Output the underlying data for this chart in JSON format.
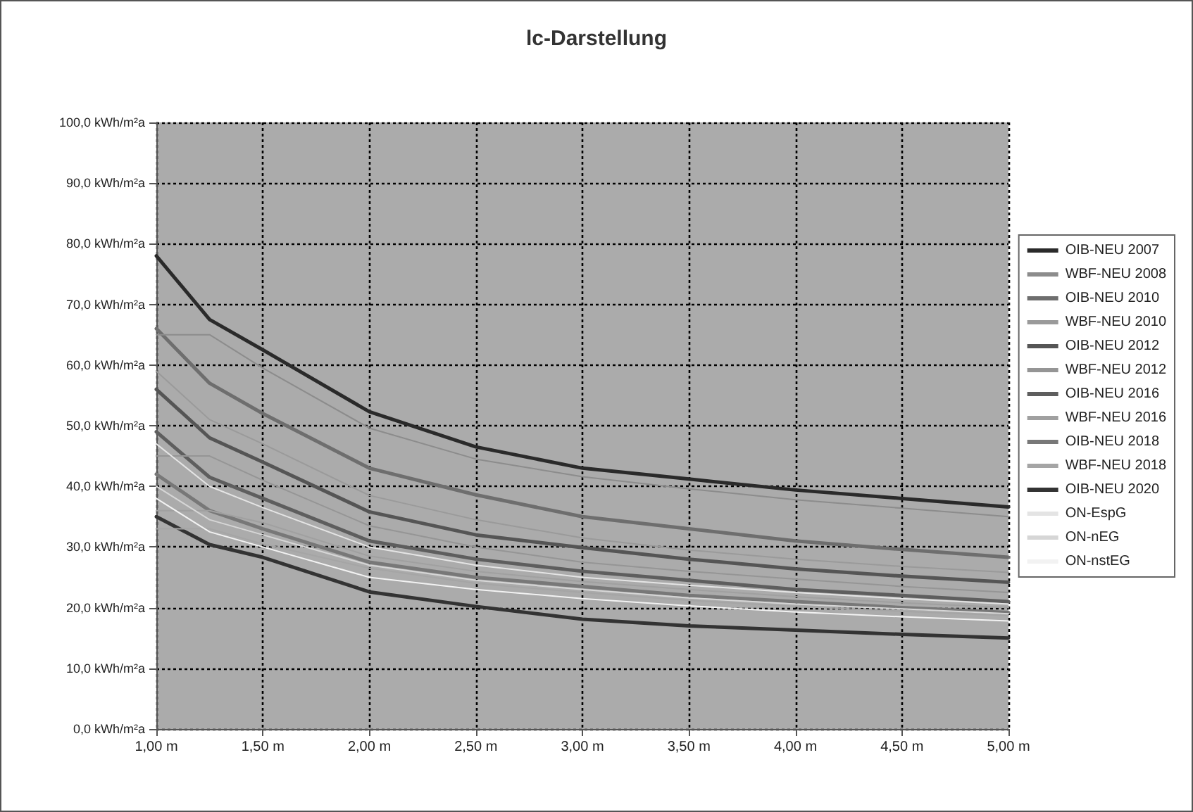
{
  "chart_data": {
    "type": "line",
    "title": "lc-Darstellung",
    "x": [
      1,
      1.25,
      1.5,
      2,
      2.5,
      3,
      3.5,
      4,
      4.5,
      5
    ],
    "series": [
      {
        "name": "OIB-NEU 2007",
        "color": "#2a2a2a",
        "values": [
          78,
          67.5,
          62.5,
          52.3,
          46.5,
          43,
          41.2,
          39.4,
          38,
          36.6
        ]
      },
      {
        "name": "WBF-NEU 2008",
        "color": "#8c8c8c",
        "values": [
          65,
          65,
          59.5,
          49.6,
          44.5,
          41.6,
          39.6,
          37.8,
          36.4,
          35
        ]
      },
      {
        "name": "OIB-NEU 2010",
        "color": "#6e6e6e",
        "values": [
          66,
          57,
          52,
          43,
          38.6,
          35,
          33,
          31,
          29.6,
          28.3
        ]
      },
      {
        "name": "WBF-NEU 2010",
        "color": "#9a9a9a",
        "values": [
          59,
          51,
          47,
          38.5,
          34.5,
          31.5,
          29.5,
          28,
          26.8,
          25.8
        ]
      },
      {
        "name": "OIB-NEU 2012",
        "color": "#555555",
        "values": [
          56,
          48,
          44,
          35.8,
          32,
          29.9,
          28,
          26.4,
          25.2,
          24.2
        ]
      },
      {
        "name": "WBF-NEU 2012",
        "color": "#959595",
        "values": [
          45,
          45,
          41,
          33.5,
          30,
          27.5,
          26,
          24.7,
          23.5,
          22.5
        ]
      },
      {
        "name": "OIB-NEU 2016",
        "color": "#5e5e5e",
        "values": [
          49,
          41.5,
          38,
          31,
          28,
          26,
          24.5,
          23,
          22,
          21
        ]
      },
      {
        "name": "WBF-NEU 2016",
        "color": "#a0a0a0",
        "values": [
          36,
          36,
          34,
          28.5,
          26,
          24.3,
          23,
          21.8,
          20.8,
          20
        ]
      },
      {
        "name": "OIB-NEU 2018",
        "color": "#787878",
        "values": [
          42,
          36,
          33,
          27.5,
          25,
          23.5,
          22,
          21,
          20,
          19.2
        ]
      },
      {
        "name": "WBF-NEU 2018",
        "color": "#a5a5a5",
        "values": [
          33,
          33,
          30.5,
          26.5,
          24,
          22.5,
          21.2,
          20.2,
          19.4,
          18.7
        ]
      },
      {
        "name": "OIB-NEU 2020",
        "color": "#333333",
        "values": [
          35,
          30.4,
          28.3,
          22.6,
          20.2,
          18.1,
          17,
          16.3,
          15.6,
          15
        ]
      },
      {
        "name": "ON-EspG",
        "color": "#e4e4e4",
        "values": [
          47,
          40,
          36.5,
          30,
          27,
          25,
          23.7,
          22.5,
          21.5,
          20.6
        ]
      },
      {
        "name": "ON-nEG",
        "color": "#d6d6d6",
        "values": [
          40,
          34.5,
          32,
          27,
          24.5,
          23,
          21.6,
          20.6,
          19.8,
          19
        ]
      },
      {
        "name": "ON-nstEG",
        "color": "#f2f2f2",
        "values": [
          38,
          32.5,
          30,
          25,
          23,
          21.5,
          20.3,
          19.3,
          18.5,
          17.8
        ]
      }
    ],
    "xlim": [
      1,
      5
    ],
    "xticks": [
      {
        "value": 1,
        "label": "1,00 m"
      },
      {
        "value": 1.5,
        "label": "1,50 m"
      },
      {
        "value": 2,
        "label": "2,00 m"
      },
      {
        "value": 2.5,
        "label": "2,50 m"
      },
      {
        "value": 3,
        "label": "3,00 m"
      },
      {
        "value": 3.5,
        "label": "3,50 m"
      },
      {
        "value": 4,
        "label": "4,00 m"
      },
      {
        "value": 4.5,
        "label": "4,50 m"
      },
      {
        "value": 5,
        "label": "5,00 m"
      }
    ],
    "ylim": [
      0,
      100
    ],
    "yticks": [
      {
        "value": 0,
        "label": "0,0 kWh/m²a"
      },
      {
        "value": 10,
        "label": "10,0 kWh/m²a"
      },
      {
        "value": 20,
        "label": "20,0 kWh/m²a"
      },
      {
        "value": 30,
        "label": "30,0 kWh/m²a"
      },
      {
        "value": 40,
        "label": "40,0 kWh/m²a"
      },
      {
        "value": 50,
        "label": "50,0 kWh/m²a"
      },
      {
        "value": 60,
        "label": "60,0 kWh/m²a"
      },
      {
        "value": 70,
        "label": "70,0 kWh/m²a"
      },
      {
        "value": 80,
        "label": "80,0 kWh/m²a"
      },
      {
        "value": 90,
        "label": "90,0 kWh/m²a"
      },
      {
        "value": 100,
        "label": "100,0 kWh/m²a"
      }
    ],
    "grid": true,
    "legend": "right",
    "marker": "none",
    "line_style": "solid"
  }
}
